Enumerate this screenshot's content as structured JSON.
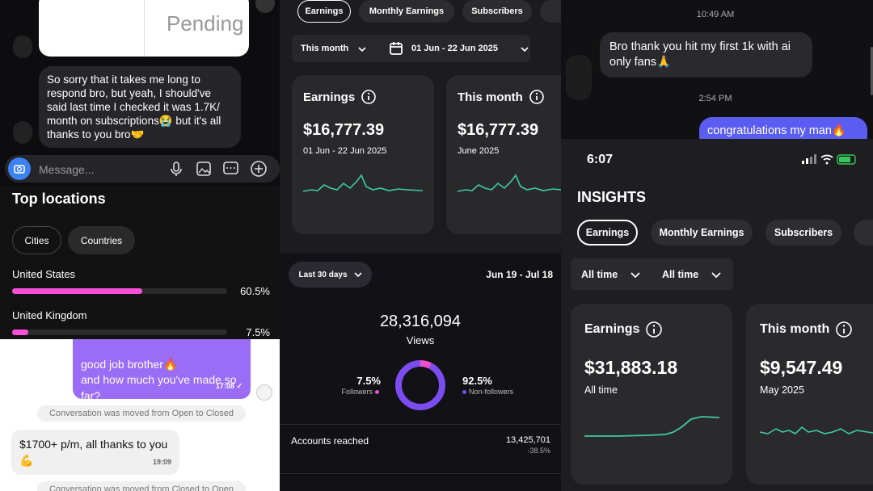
{
  "left_chat": {
    "pending": "Pending",
    "message": "So sorry that it takes me long to respond bro, but yeah, I should've said last time I checked it was 1.7K/ month on subscriptions😭 but it's all thanks to you bro🤝",
    "input_placeholder": "Message..."
  },
  "top_locations": {
    "title": "Top locations",
    "tabs": [
      "Cities",
      "Countries"
    ],
    "rows": [
      {
        "name": "United States",
        "value": 60.5,
        "value_label": "60.5%"
      },
      {
        "name": "United Kingdom",
        "value": 7.5,
        "value_label": "7.5%"
      }
    ]
  },
  "support_chat": {
    "sent": {
      "text": "good job brother🔥\nand how much you've made so far?",
      "time": "17:08"
    },
    "notice1": "Conversation was moved from Open to Closed",
    "received": {
      "text": "$1700+ p/m, all thanks to you 💪",
      "time": "19:09"
    },
    "notice2": "Conversation was moved from Closed to Open"
  },
  "earnings_app": {
    "tabs": [
      "Earnings",
      "Monthly Earnings",
      "Subscribers"
    ],
    "period": "This month",
    "date_range": "01 Jun - 22 Jun 2025",
    "cards": [
      {
        "title": "Earnings",
        "amount": "$16,777.39",
        "subtitle": "01 Jun - 22 Jun 2025"
      },
      {
        "title": "This month",
        "amount": "$16,777.39",
        "subtitle": "June 2025"
      }
    ]
  },
  "views_app": {
    "range_button": "Last 30 days",
    "date_range": "Jun 19 - Jul 18",
    "views": "28,316,094",
    "views_label": "Views",
    "followers": {
      "value": 7.5,
      "value_label": "7.5%",
      "label": "Followers"
    },
    "non_followers": {
      "value": 92.5,
      "value_label": "92.5%",
      "label": "Non-followers"
    },
    "accounts_reached": {
      "label": "Accounts reached",
      "value": "13,425,701",
      "change": "-38.5%"
    }
  },
  "right_chat": {
    "time1": "10:49 AM",
    "received": "Bro thank you hit my first 1k with ai only fans🙏",
    "time2": "2:54 PM",
    "sent": "congratulations my man🔥"
  },
  "insights": {
    "status_time": "6:07",
    "title": "INSIGHTS",
    "tabs": [
      "Earnings",
      "Monthly Earnings",
      "Subscribers"
    ],
    "filters": [
      "All time",
      "All time"
    ],
    "cards": [
      {
        "title": "Earnings",
        "amount": "$31,883.18",
        "subtitle": "All time"
      },
      {
        "title": "This month",
        "amount": "$9,547.49",
        "subtitle": "May 2025"
      }
    ]
  }
}
